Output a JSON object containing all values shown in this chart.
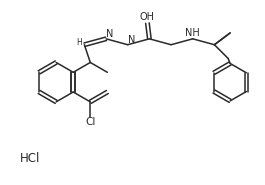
{
  "background_color": "#ffffff",
  "line_color": "#2a2a2a",
  "text_color": "#2a2a2a",
  "line_width": 1.1,
  "font_size": 7.0,
  "hcl_label": "HCl",
  "oh_label": "OH",
  "n_label": "N",
  "h_label": "H",
  "cl_label": "Cl",
  "nh_label": "NH"
}
